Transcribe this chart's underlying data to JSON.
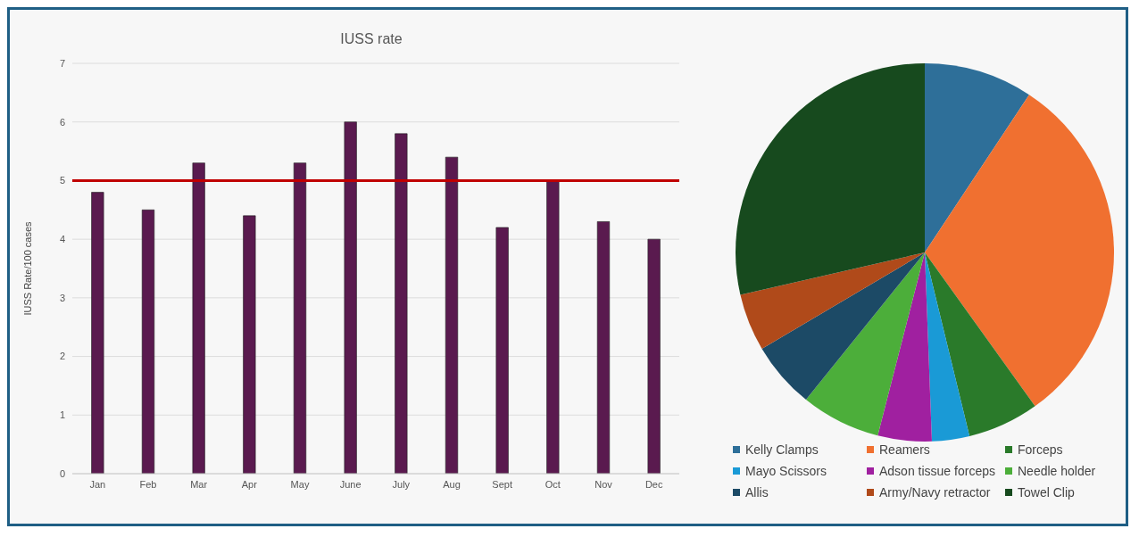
{
  "chart_data": [
    {
      "type": "bar",
      "title": "IUSS rate",
      "ylabel": "IUSS Rate/100 cases",
      "categories": [
        "Jan",
        "Feb",
        "Mar",
        "Apr",
        "May",
        "June",
        "July",
        "Aug",
        "Sept",
        "Oct",
        "Nov",
        "Dec"
      ],
      "values": [
        4.8,
        4.5,
        5.3,
        4.4,
        5.3,
        6.0,
        5.8,
        5.4,
        4.2,
        5.0,
        4.3,
        4.0
      ],
      "color": "#5a1a4f",
      "ylim": [
        0,
        7
      ],
      "yticks": [
        0,
        1,
        2,
        3,
        4,
        5,
        6,
        7
      ],
      "grid": "y",
      "ref_lines": [
        {
          "axis": "y",
          "value": 5,
          "color": "#c00000"
        }
      ]
    },
    {
      "type": "pie",
      "categories": [
        "Kelly Clamps",
        "Reamers",
        "Forceps",
        "Mayo Scissors",
        "Adson tissue forceps",
        "Needle holder",
        "Allis",
        "Army/Navy retractor",
        "Towel Clip"
      ],
      "values": [
        9.3,
        30.8,
        6.1,
        3.2,
        4.6,
        6.8,
        5.7,
        4.9,
        28.6
      ],
      "colors": [
        "#2e6f99",
        "#f07030",
        "#2a7a2a",
        "#1a9ad6",
        "#a020a0",
        "#4cae3a",
        "#1c4a66",
        "#b04a1a",
        "#174a1e"
      ],
      "legend": "bottom"
    }
  ]
}
